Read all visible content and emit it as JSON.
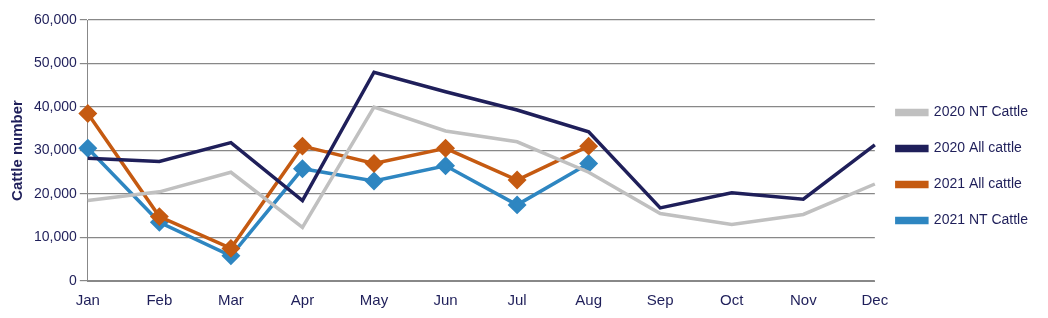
{
  "chart_data": {
    "type": "line",
    "y_label": "Cattle number",
    "categories": [
      "Jan",
      "Feb",
      "Mar",
      "Apr",
      "May",
      "Jun",
      "Jul",
      "Aug",
      "Sep",
      "Oct",
      "Nov",
      "Dec"
    ],
    "series": [
      {
        "name": "2021 NT Cattle",
        "color": "#2e86c1",
        "marker": "diamond",
        "values": [
          30500,
          13500,
          5800,
          25800,
          23000,
          26500,
          17500,
          27000,
          null,
          null,
          null,
          null
        ]
      },
      {
        "name": "2021 All cattle",
        "color": "#c55a11",
        "marker": "diamond",
        "values": [
          38500,
          14800,
          7500,
          31000,
          27000,
          30500,
          23200,
          31000,
          null,
          null,
          null,
          null
        ]
      },
      {
        "name": "2020 All cattle",
        "color": "#1f1f5a",
        "marker": "none",
        "values": [
          28200,
          27500,
          31800,
          18500,
          48000,
          43500,
          39300,
          34300,
          16800,
          20300,
          18800,
          31300
        ]
      },
      {
        "name": "2020 NT Cattle",
        "color": "#c0c0c0",
        "marker": "none",
        "values": [
          18500,
          20500,
          25000,
          12300,
          40000,
          34500,
          32000,
          25000,
          15500,
          13000,
          15300,
          22300
        ]
      }
    ],
    "ylim": [
      0,
      60000
    ],
    "yticks": [
      0,
      {
        "value": 10000,
        "label": "10,000"
      },
      {
        "value": 20000,
        "label": "20,000"
      },
      {
        "value": 30000,
        "label": "30,000"
      },
      {
        "value": 40000,
        "label": "40,000"
      },
      {
        "value": 50000,
        "label": "50,000"
      },
      {
        "value": 60000,
        "label": "60,000"
      }
    ],
    "grid": true,
    "legend": "right"
  }
}
